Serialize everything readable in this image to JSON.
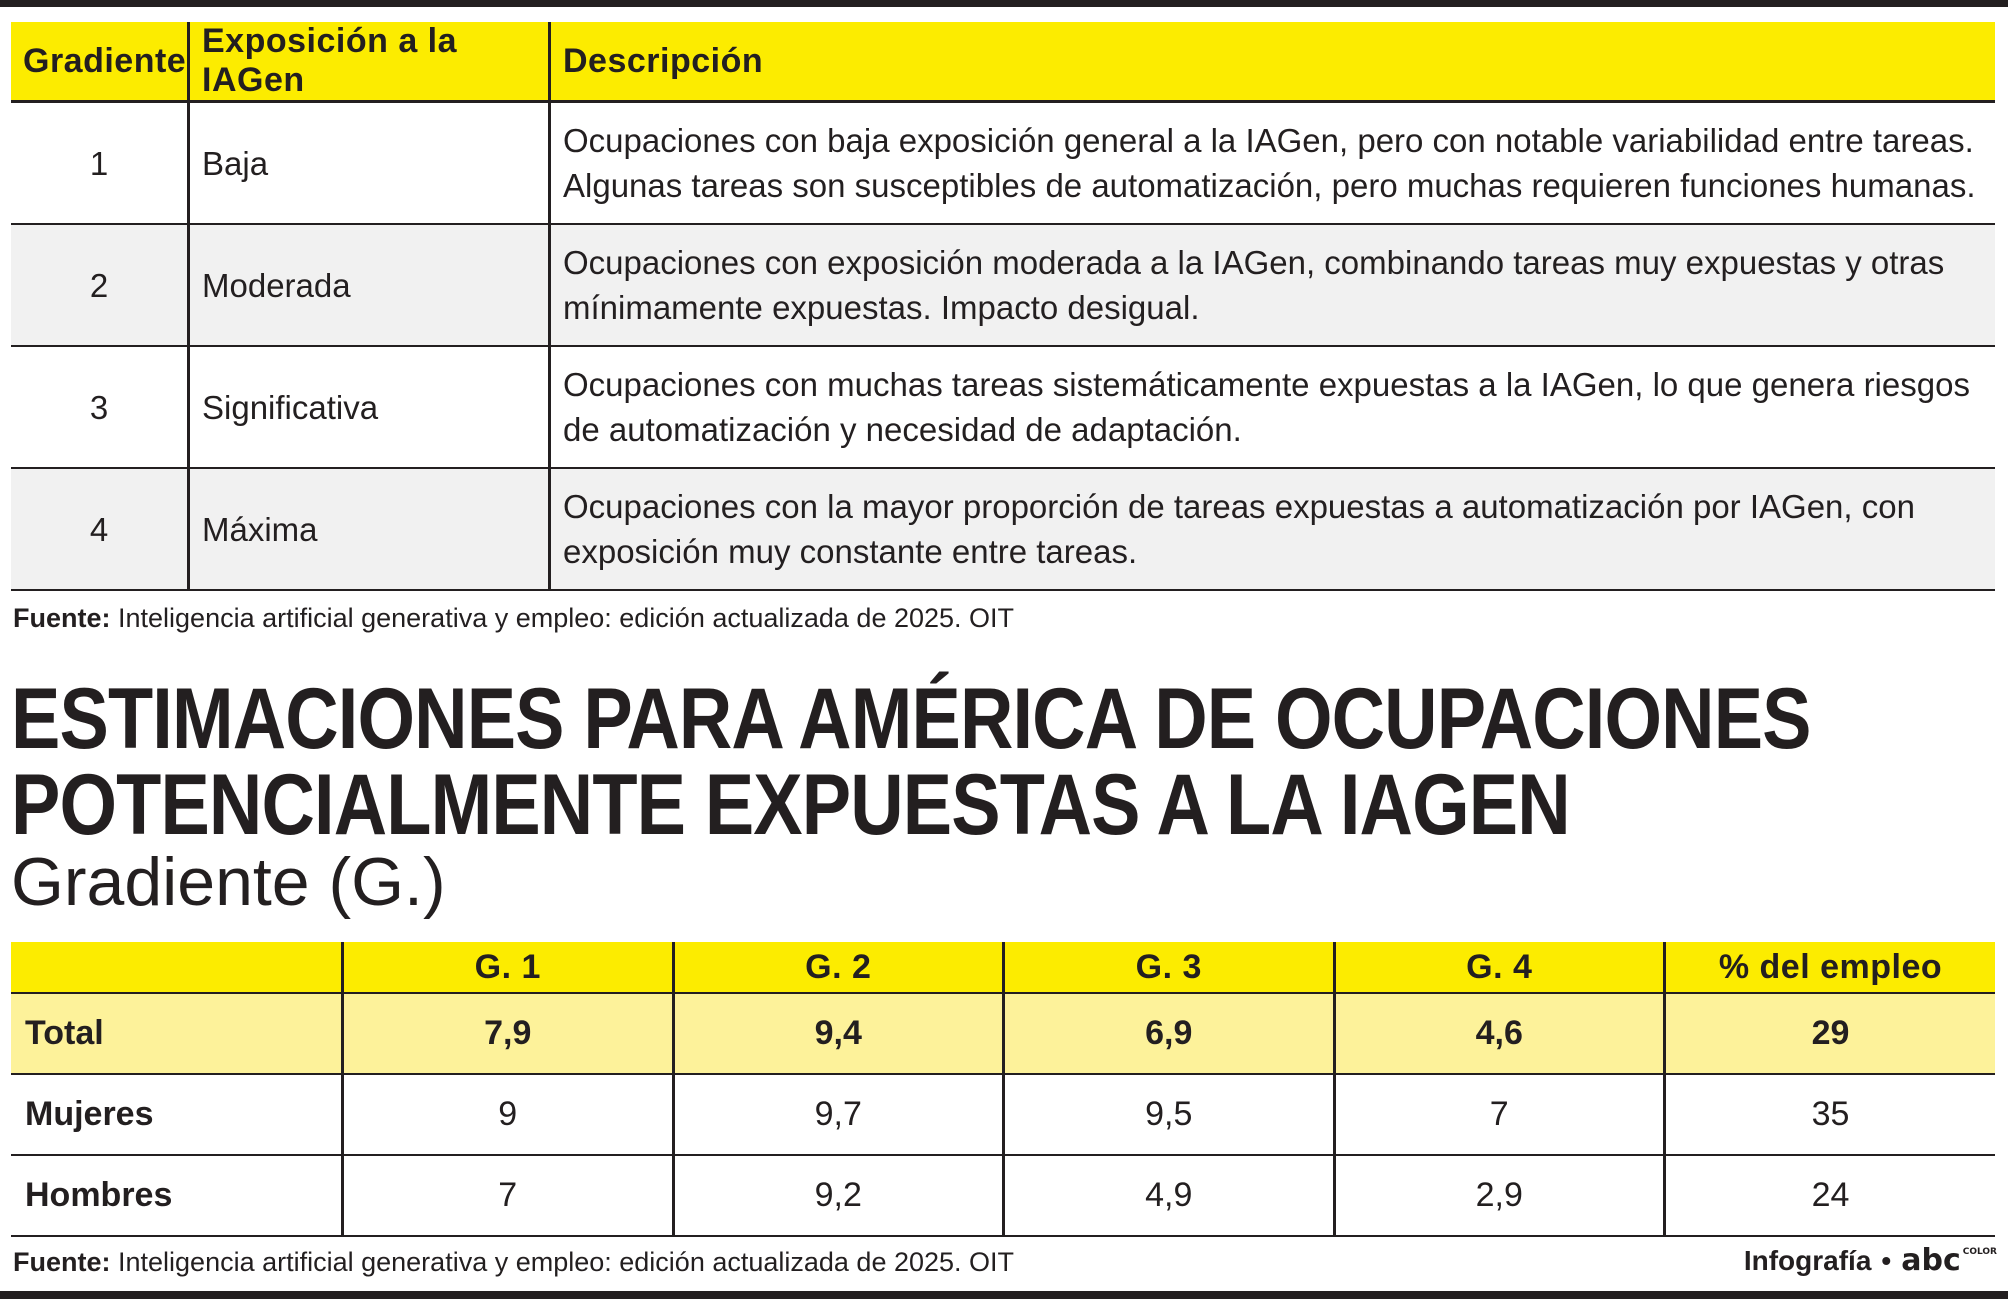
{
  "table1": {
    "headers": [
      "Gradiente",
      "Exposición a la IAGen",
      "Descripción"
    ],
    "rows": [
      {
        "gradient": "1",
        "exposure": "Baja",
        "description": "Ocupaciones con baja exposición general a la IAGen, pero con notable variabilidad entre tareas. Algunas tareas son susceptibles de automatización, pero muchas requieren funciones humanas."
      },
      {
        "gradient": "2",
        "exposure": "Moderada",
        "description": "Ocupaciones con exposición moderada a la IAGen, combinando tareas muy expuestas y otras mínimamente expuestas. Impacto desigual."
      },
      {
        "gradient": "3",
        "exposure": "Significativa",
        "description": "Ocupaciones con muchas tareas sistemáticamente expuestas a la IAGen, lo que genera riesgos de automatización y necesidad de adaptación."
      },
      {
        "gradient": "4",
        "exposure": "Máxima",
        "description": "Ocupaciones con la mayor proporción de tareas expuestas a automatización por IAGen, con exposición muy constante entre tareas."
      }
    ],
    "source_label": "Fuente:",
    "source_text": " Inteligencia artificial generativa y empleo: edición actualizada de 2025. OIT"
  },
  "section2": {
    "title_line1": "ESTIMACIONES PARA AMÉRICA DE OCUPACIONES",
    "title_line2": "POTENCIALMENTE EXPUESTAS A LA IAGEN",
    "subtitle": "Gradiente (G.)"
  },
  "table2": {
    "headers": [
      "",
      "G. 1",
      "G. 2",
      "G. 3",
      "G. 4",
      "% del empleo"
    ],
    "rows": [
      {
        "label": "Total",
        "values": [
          "7,9",
          "9,4",
          "6,9",
          "4,6",
          "29"
        ]
      },
      {
        "label": "Mujeres",
        "values": [
          "9",
          "9,7",
          "9,5",
          "7",
          "35"
        ]
      },
      {
        "label": "Hombres",
        "values": [
          "7",
          "9,2",
          "4,9",
          "2,9",
          "24"
        ]
      }
    ],
    "source_label": "Fuente:",
    "source_text": " Inteligencia artificial generativa y empleo: edición actualizada de 2025. OIT"
  },
  "credit": {
    "label": "Infografía",
    "separator": "•",
    "logo_text": "abc",
    "logo_small": "COLOR"
  },
  "colors": {
    "header_yellow": "#fcec00",
    "total_row_yellow": "#fdf29a",
    "alt_row_gray": "#f1f1f1",
    "ink": "#231f20"
  }
}
